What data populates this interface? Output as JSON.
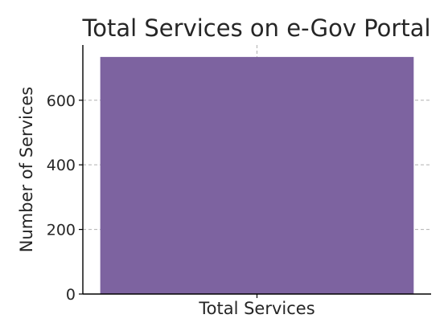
{
  "chart_data": {
    "type": "bar",
    "title": "Total Services on e-Gov Portal",
    "xlabel": "",
    "ylabel": "Number of Services",
    "categories": [
      "Total Services"
    ],
    "values": [
      734
    ],
    "ylim": [
      0,
      771
    ],
    "yticks": [
      0,
      200,
      400,
      600
    ],
    "grid": true,
    "colors": {
      "bar": "#7d63a0"
    }
  }
}
